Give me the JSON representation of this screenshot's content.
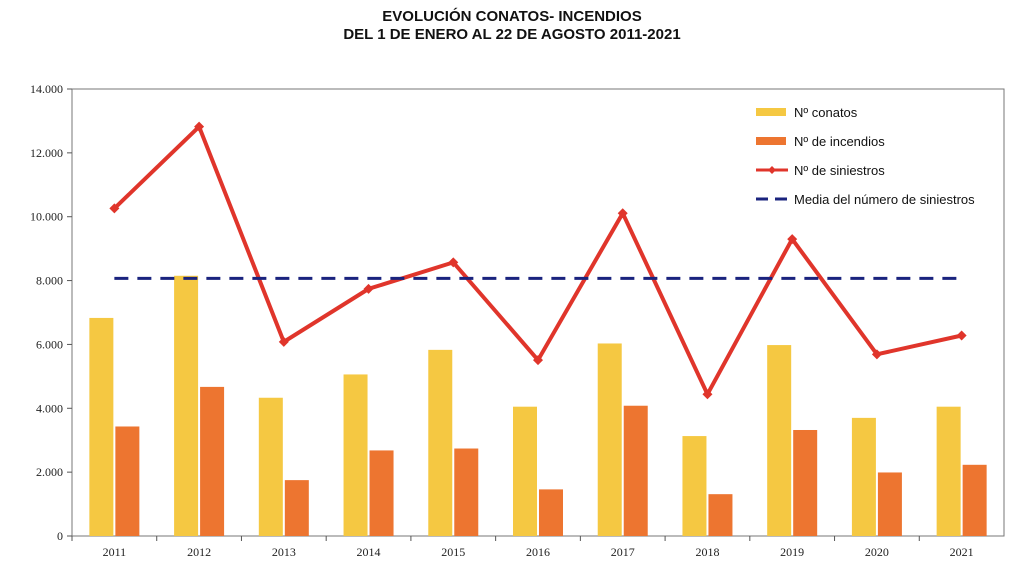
{
  "chart_data": {
    "type": "bar",
    "title": "EVOLUCIÓN CONATOS- INCENDIOS",
    "subtitle": "DEL 1 DE ENERO AL 22 DE AGOSTO 2011-2021",
    "categories": [
      "2011",
      "2012",
      "2013",
      "2014",
      "2015",
      "2016",
      "2017",
      "2018",
      "2019",
      "2020",
      "2021"
    ],
    "series": [
      {
        "name": "Nº conatos",
        "type": "bar",
        "color": "#f5c842",
        "values": [
          6830,
          8150,
          4330,
          5060,
          5830,
          4050,
          6030,
          3130,
          5980,
          3700,
          4050
        ]
      },
      {
        "name": "Nº de incendios",
        "type": "bar",
        "color": "#ed7530",
        "values": [
          3430,
          4670,
          1750,
          2680,
          2740,
          1460,
          4080,
          1310,
          3320,
          1990,
          2230
        ]
      },
      {
        "name": "Nº de siniestros",
        "type": "line",
        "color": "#e0352b",
        "marker": "diamond",
        "values": [
          10260,
          12820,
          6080,
          7740,
          8570,
          5510,
          10110,
          4440,
          9300,
          5690,
          6280
        ]
      },
      {
        "name": "Media del número de siniestros",
        "type": "line",
        "color": "#1a237e",
        "dash": true,
        "values": [
          8070,
          8070,
          8070,
          8070,
          8070,
          8070,
          8070,
          8070,
          8070,
          8070,
          8070
        ]
      }
    ],
    "yticks": [
      "0",
      "2.000",
      "4.000",
      "6.000",
      "8.000",
      "10.000",
      "12.000",
      "14.000"
    ],
    "ylim": [
      0,
      14000
    ],
    "grid": false,
    "legend_position": "top-right"
  }
}
